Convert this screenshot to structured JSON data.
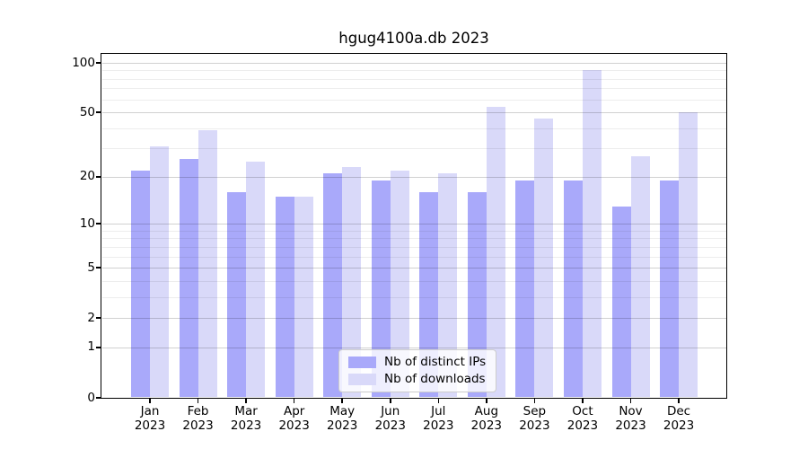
{
  "title": "hgug4100a.db 2023",
  "chart_data": {
    "type": "bar",
    "title": "hgug4100a.db 2023",
    "categories": [
      "Jan 2023",
      "Feb 2023",
      "Mar 2023",
      "Apr 2023",
      "May 2023",
      "Jun 2023",
      "Jul 2023",
      "Aug 2023",
      "Sep 2023",
      "Oct 2023",
      "Nov 2023",
      "Dec 2023"
    ],
    "x_tick_line1": [
      "Jan",
      "Feb",
      "Mar",
      "Apr",
      "May",
      "Jun",
      "Jul",
      "Aug",
      "Sep",
      "Oct",
      "Nov",
      "Dec"
    ],
    "x_tick_line2": "2023",
    "series": [
      {
        "name": "Nb of distinct IPs",
        "color": "#a9a9fa",
        "values": [
          22,
          26,
          16,
          15,
          21,
          19,
          16,
          16,
          19,
          19,
          13,
          19
        ]
      },
      {
        "name": "Nb of downloads",
        "color": "#d9d9f9",
        "values": [
          31,
          39,
          25,
          15,
          23,
          22,
          21,
          54,
          46,
          90,
          27,
          50
        ]
      }
    ],
    "yscale": "log1p",
    "ylim": [
      0,
      113
    ],
    "y_major_ticks": [
      0,
      1,
      2,
      5,
      10,
      20,
      50,
      100
    ],
    "y_minor_gridlines": [
      3,
      4,
      6,
      7,
      8,
      9,
      30,
      40,
      60,
      70,
      80,
      90
    ],
    "grid": true,
    "legend_position": "lower center",
    "xlabel": "",
    "ylabel": ""
  },
  "legend": {
    "items": [
      {
        "label": "Nb of distinct IPs",
        "color": "#a9a9fa"
      },
      {
        "label": "Nb of downloads",
        "color": "#d9d9f9"
      }
    ]
  },
  "colors": {
    "background": "#ffffff",
    "spine": "#000000",
    "ips_bar": "#a9a9fa",
    "downloads_bar": "#d9d9f9",
    "legend_border": "#cccccc"
  }
}
